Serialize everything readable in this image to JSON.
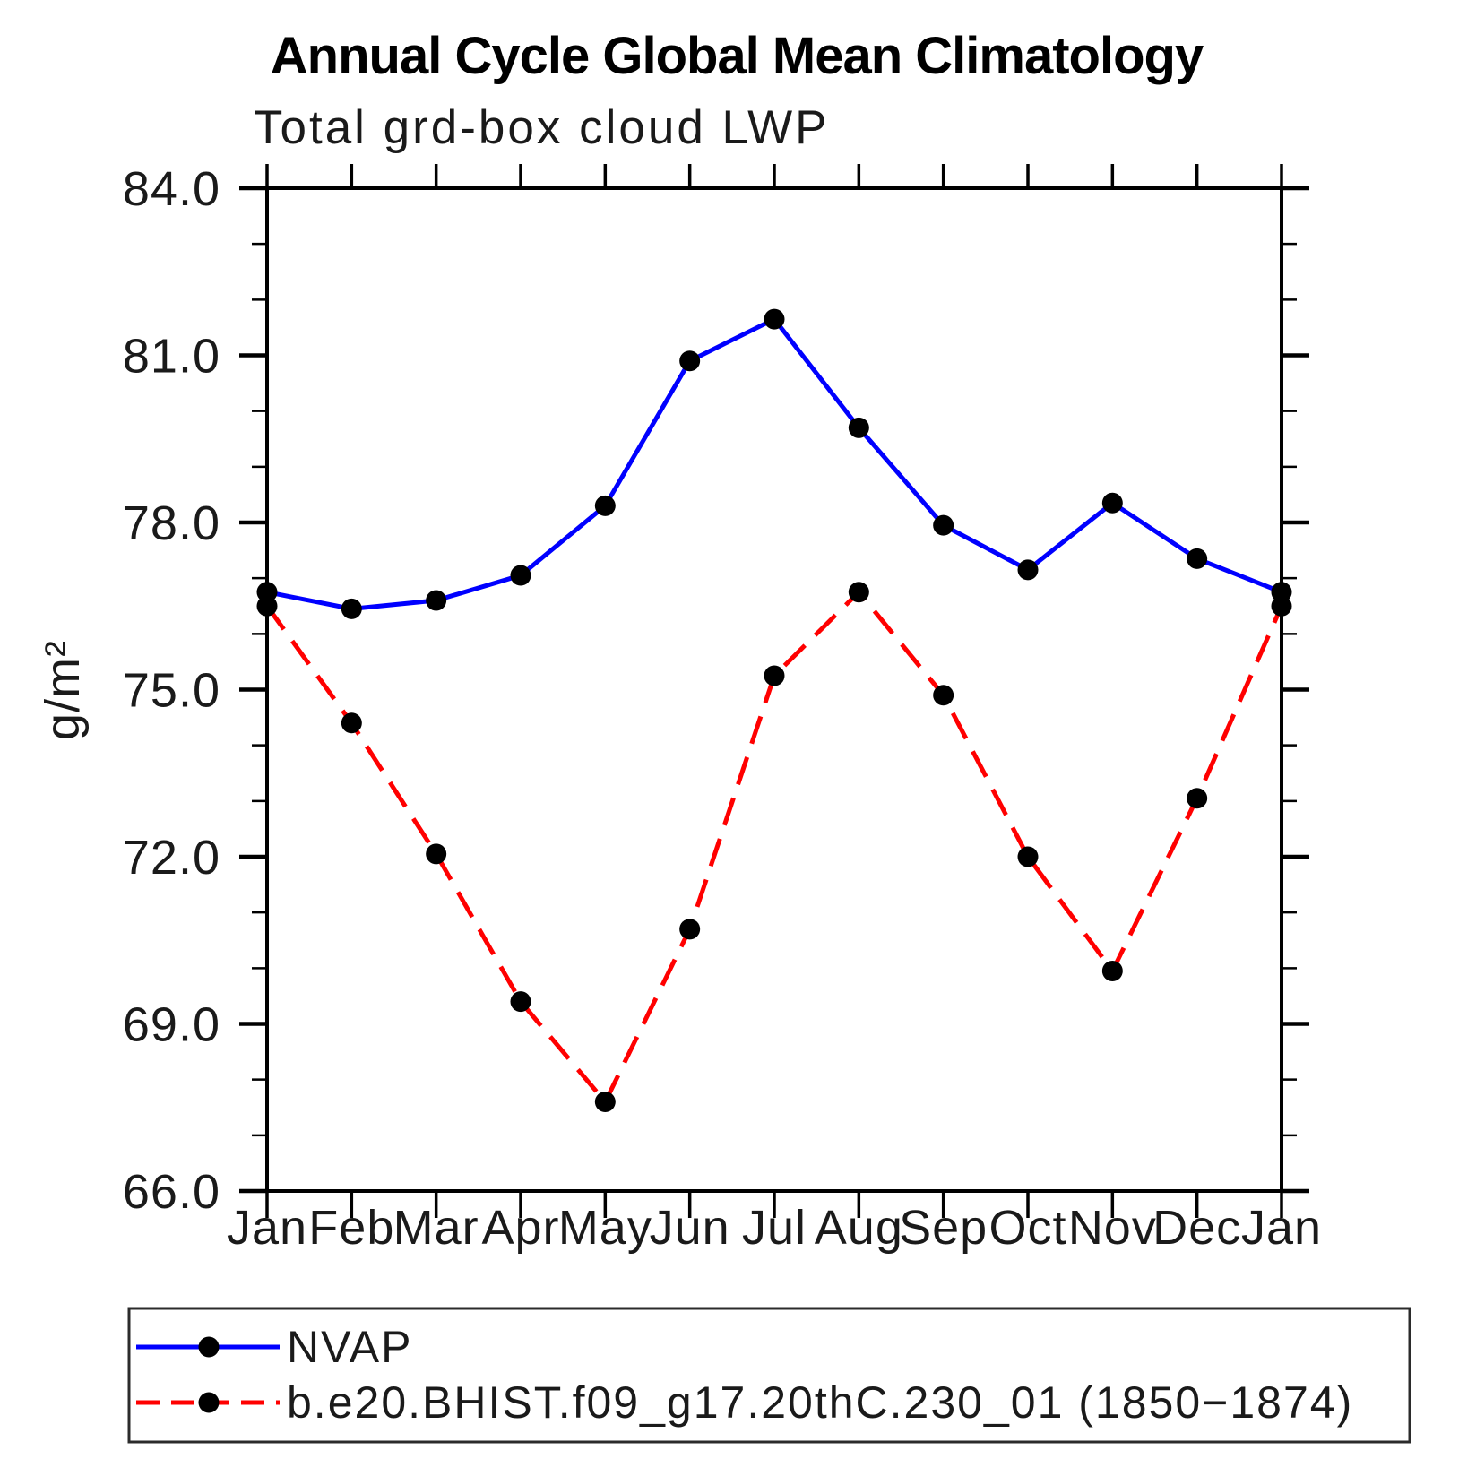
{
  "title": "Annual Cycle Global Mean Climatology",
  "subtitle": "Total grd-box cloud LWP",
  "legend": {
    "items": [
      {
        "label": "NVAP",
        "color": "#0000ff",
        "style": "solid"
      },
      {
        "label": "b.e20.BHIST.f09_g17.20thC.230_01 (1850−1874)",
        "color": "#ff0000",
        "style": "dashed"
      }
    ]
  },
  "chart_data": {
    "type": "line",
    "title": "Annual Cycle Global Mean Climatology",
    "subtitle": "Total grd-box cloud LWP",
    "xlabel": "",
    "ylabel": "g/m²",
    "categories": [
      "Jan",
      "Feb",
      "Mar",
      "Apr",
      "May",
      "Jun",
      "Jul",
      "Aug",
      "Sep",
      "Oct",
      "Nov",
      "Dec",
      "Jan"
    ],
    "series": [
      {
        "name": "NVAP",
        "color": "#0000ff",
        "line_style": "solid",
        "marker": "circle",
        "marker_color": "#000000",
        "values": [
          76.75,
          76.45,
          76.6,
          77.05,
          78.3,
          80.9,
          81.65,
          79.7,
          77.95,
          77.15,
          78.35,
          77.35,
          76.75
        ]
      },
      {
        "name": "b.e20.BHIST.f09_g17.20thC.230_01 (1850−1874)",
        "color": "#ff0000",
        "line_style": "dashed",
        "marker": "circle",
        "marker_color": "#000000",
        "values": [
          76.5,
          74.4,
          72.05,
          69.4,
          67.6,
          70.7,
          75.25,
          76.75,
          74.9,
          72.0,
          69.95,
          73.05,
          76.5
        ]
      }
    ],
    "ylim": [
      66.0,
      84.0
    ],
    "yticks_major": [
      66,
      69,
      72,
      75,
      78,
      81,
      84
    ],
    "ytick_labels": [
      "66.0",
      "69.0",
      "72.0",
      "75.0",
      "78.0",
      "81.0",
      "84.0"
    ],
    "ytick_minor_step": 1,
    "grid": false,
    "tick_direction": "out",
    "legend_position": "bottom"
  }
}
